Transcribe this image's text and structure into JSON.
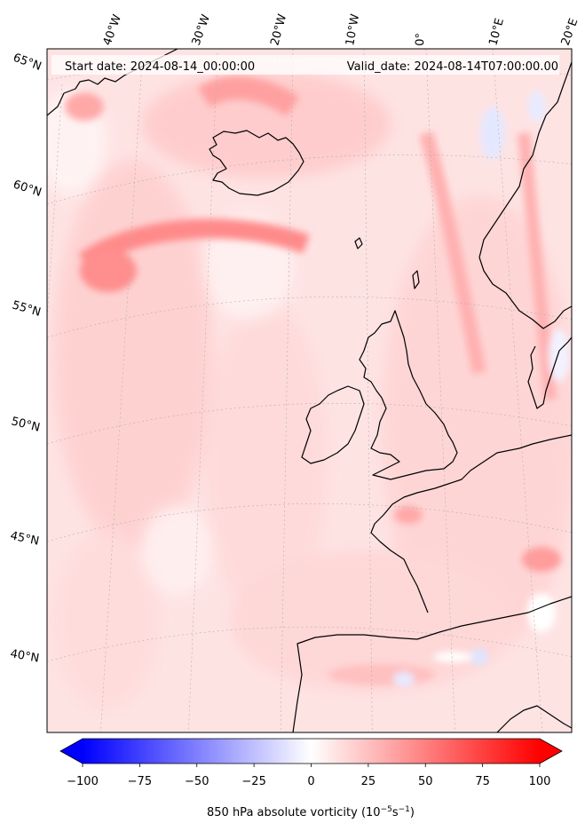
{
  "header": {
    "start_date": "Start date: 2024-08-14_00:00:00",
    "valid_date": "Valid_date: 2024-08-14T07:00:00.00"
  },
  "longitude_labels": [
    "40°W",
    "30°W",
    "20°W",
    "10°W",
    "0°",
    "10°E",
    "20°E"
  ],
  "latitude_labels": [
    "65°N",
    "60°N",
    "55°N",
    "50°N",
    "45°N",
    "40°N"
  ],
  "colorbar": {
    "min": -100,
    "max": 100,
    "tick_labels": [
      "−100",
      "−75",
      "−50",
      "−25",
      "0",
      "25",
      "50",
      "75",
      "100"
    ],
    "label_main": "850 hPa absolute vorticity (10",
    "label_exp1": "−5",
    "label_mid": "s",
    "label_exp2": "−1",
    "label_end": ")",
    "colors": {
      "negative": "#0000ff",
      "zero": "#ffffff",
      "positive": "#ff0000"
    }
  },
  "colors": {
    "coastline": "#000000",
    "gridline": "#b0b0b0"
  }
}
